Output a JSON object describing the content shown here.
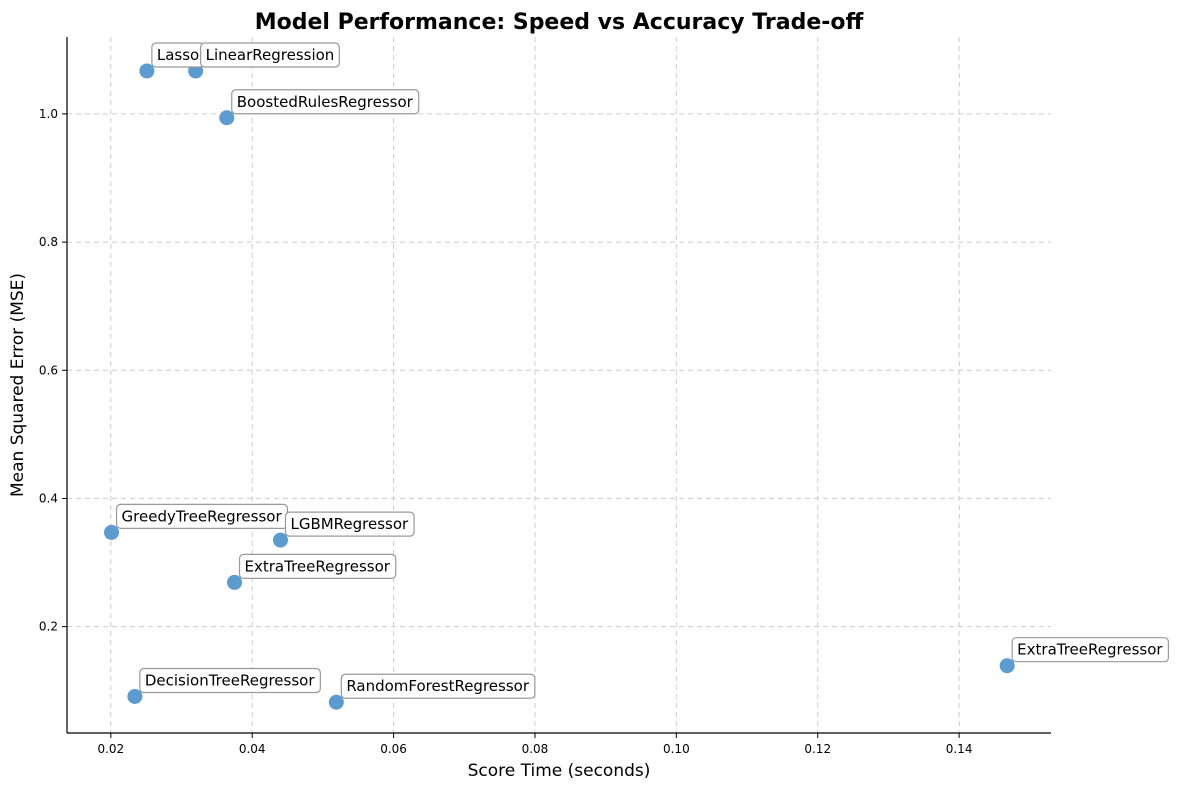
{
  "chart_data": {
    "type": "scatter",
    "title": "Model Performance: Speed vs Accuracy Trade-off",
    "xlabel": "Score Time (seconds)",
    "ylabel": "Mean Squared Error (MSE)",
    "xlim": [
      0.0138,
      0.153
    ],
    "ylim": [
      0.034,
      1.12
    ],
    "xticks": [
      0.02,
      0.04,
      0.06,
      0.08,
      0.1,
      0.12,
      0.14
    ],
    "xtick_labels": [
      "0.02",
      "0.04",
      "0.06",
      "0.08",
      "0.10",
      "0.12",
      "0.14"
    ],
    "yticks": [
      0.2,
      0.4,
      0.6,
      0.8,
      1.0
    ],
    "ytick_labels": [
      "0.2",
      "0.4",
      "0.6",
      "0.8",
      "1.0"
    ],
    "grid": true,
    "point_color": "#5b9bd0",
    "points": [
      {
        "label": "Lasso",
        "x": 0.0251,
        "y": 1.067
      },
      {
        "label": "LinearRegression",
        "x": 0.032,
        "y": 1.067
      },
      {
        "label": "BoostedRulesRegressor",
        "x": 0.0364,
        "y": 0.994
      },
      {
        "label": "GreedyTreeRegressor",
        "x": 0.0201,
        "y": 0.347
      },
      {
        "label": "LGBMRegressor",
        "x": 0.044,
        "y": 0.335
      },
      {
        "label": "ExtraTreeRegressor",
        "x": 0.0375,
        "y": 0.269
      },
      {
        "label": "ExtraTreeRegressor",
        "x": 0.1468,
        "y": 0.139
      },
      {
        "label": "DecisionTreeRegressor",
        "x": 0.0234,
        "y": 0.091
      },
      {
        "label": "RandomForestRegressor",
        "x": 0.0519,
        "y": 0.082
      }
    ]
  }
}
